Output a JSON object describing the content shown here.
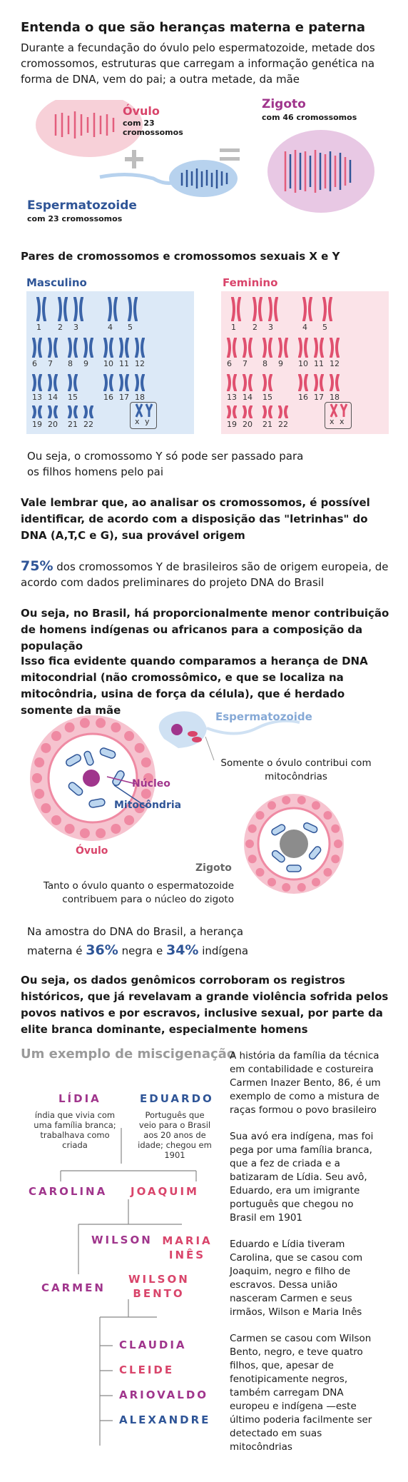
{
  "title": "Entenda o que são heranças materna e paterna",
  "intro": "Durante a fecundação do óvulo pelo espermatozoide, metade dos cromossomos, estruturas que carregam a informação genética na forma de DNA, vem do pai; a outra metade, da mãe",
  "fert": {
    "ovulo_title": "Óvulo",
    "ovulo_sub": "com 23 cromossomos",
    "esperma_title": "Espermatozoide",
    "esperma_sub": "com 23 cromossomos",
    "zigoto_title": "Zigoto",
    "zigoto_sub": "com 46 cromossomos",
    "plus": "+",
    "equals": "="
  },
  "pairs_title": "Pares de cromossomos e cromossomos sexuais X e Y",
  "masc_label": "Masculino",
  "fem_label": "Feminino",
  "karyo_numbers": [
    "1",
    "2",
    "3",
    "4",
    "5",
    "6",
    "7",
    "8",
    "9",
    "10",
    "11",
    "12",
    "13",
    "14",
    "15",
    "16",
    "17",
    "18",
    "19",
    "20",
    "21",
    "22"
  ],
  "masc_sex": "x y",
  "fem_sex": "x x",
  "y_note": "Ou seja, o cromossomo Y só pode ser passado para os filhos homens pelo pai",
  "remember": "Vale lembrar que, ao analisar os cromossomos, é possível identificar, de acordo com a disposição das \"letrinhas\" do DNA (A,T,C e G), sua provável origem",
  "stat75": {
    "value": "75%",
    "text": "dos cromossomos Y de brasileiros são de origem europeia, de acordo com  dados preliminares do projeto DNA do Brasil"
  },
  "less_contrib": "Ou seja, no Brasil, há proporcionalmente menor contribuição de homens indígenas ou africanos para a composição da população",
  "mito_intro": "Isso fica evidente quando comparamos a herança de DNA mitocondrial (não cromossômico, e que se localiza na mitocôndria, usina de força da célula), que é herdado somente da mãe",
  "cell": {
    "esperma": "Espermatozoide",
    "only_ovulo": "Somente o óvulo contribui com mitocôndrias",
    "nucleo": "Núcleo",
    "mitocondria": "Mitocôndria",
    "ovulo": "Óvulo",
    "zigoto": "Zigoto",
    "both": "Tanto o óvulo quanto o espermatozoide contribuem para o núcleo do zigoto"
  },
  "maternal": {
    "pre": "Na amostra do DNA do Brasil, a herança materna é",
    "v1": "36%",
    "mid": "negra e",
    "v2": "34%",
    "post": "indígena"
  },
  "conclusion": "Ou seja, os dados genômicos corroboram os registros históricos, que já revelavam a grande violência sofrida pelos povos nativos e por escravos, inclusive sexual, por parte da elite branca dominante, especialmente homens",
  "example_title": "Um exemplo de miscigenação",
  "tree": {
    "lidia": "LÍDIA",
    "lidia_desc": "índia que vivia com uma família branca; trabalhava como criada",
    "eduardo": "EDUARDO",
    "eduardo_desc": "Português que veio para o Brasil aos 20 anos de idade; chegou em 1901",
    "carolina": "CAROLINA",
    "joaquim": "JOAQUIM",
    "wilson": "WILSON",
    "maria": "MARIA INÊS",
    "carmen": "CARMEN",
    "wilsonbento": "WILSON BENTO",
    "children": [
      "CLAUDIA",
      "CLEIDE",
      "ARIOVALDO",
      "ALEXANDRE"
    ]
  },
  "story": [
    "A história da família da técnica em contabilidade e costureira Carmen Inazer Bento, 86, é um exemplo de como a mistura de raças formou o povo brasileiro",
    "Sua avó era indígena, mas foi pega por uma família branca, que a fez de criada e a batizaram de Lídia. Seu avô, Eduardo, era um imigrante português que chegou no Brasil em 1901",
    "Eduardo e Lídia tiveram Carolina, que se casou com Joaquim, negro e filho de escravos. Dessa união nasceram Carmen e seus irmãos, Wilson e Maria Inês",
    "Carmen se casou com Wilson Bento, negro, e teve quatro filhos, que, apesar de fenotipicamente negros, também carregam DNA europeu e indígena —este último poderia facilmente ser detectado em suas mitocôndrias"
  ],
  "colors": {
    "pink": "#d9456b",
    "blue": "#2f5597",
    "purple": "#a0358c",
    "gray": "#9a9a9a",
    "lightblue": "#dce9f7",
    "lightpink": "#fbe3e8"
  }
}
